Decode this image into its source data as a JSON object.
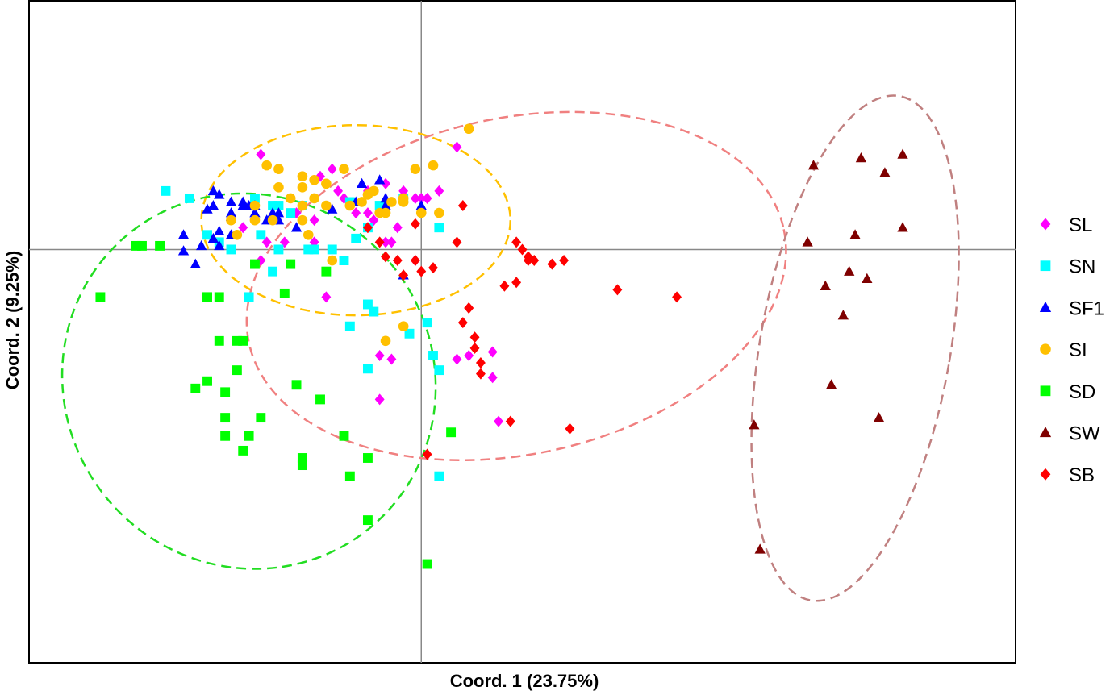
{
  "chart_data": {
    "type": "scatter",
    "title": "",
    "xlabel": "Coord. 1 (23.75%)",
    "ylabel": "Coord. 2 (9.25%)",
    "xlim": [
      -0.66,
      1.0
    ],
    "ylim": [
      -0.565,
      0.34
    ],
    "grid": false,
    "reference_lines": {
      "x": 0,
      "y": 0
    },
    "legend_position": "right",
    "series": [
      {
        "name": "SL",
        "marker": "diamond",
        "color": "#FF00FF",
        "x": [
          -0.27,
          -0.21,
          -0.18,
          -0.3,
          -0.26,
          -0.17,
          -0.15,
          -0.13,
          -0.09,
          -0.06,
          -0.03,
          0.0,
          0.03,
          0.06,
          -0.23,
          -0.14,
          -0.09,
          -0.06,
          -0.04,
          -0.01,
          0.01,
          -0.27,
          -0.18,
          -0.11,
          -0.08,
          -0.05,
          -0.01,
          0.08,
          -0.07,
          0.06,
          0.12,
          0.12,
          0.13,
          -0.16,
          -0.07,
          -0.05
        ],
        "y": [
          0.13,
          0.05,
          0.04,
          0.03,
          0.01,
          0.1,
          0.11,
          0.07,
          0.08,
          0.09,
          0.08,
          0.07,
          0.08,
          0.14,
          0.01,
          0.08,
          0.05,
          0.01,
          0.03,
          0.07,
          0.07,
          -0.015,
          0.01,
          0.05,
          0.04,
          0.01,
          -0.015,
          -0.145,
          -0.145,
          -0.15,
          -0.175,
          -0.14,
          -0.235,
          -0.065,
          -0.205,
          -0.15
        ]
      },
      {
        "name": "SN",
        "marker": "square",
        "color": "#00FFFF",
        "x": [
          -0.43,
          -0.39,
          -0.36,
          -0.34,
          -0.32,
          -0.27,
          -0.28,
          -0.24,
          -0.22,
          -0.18,
          -0.15,
          -0.12,
          -0.09,
          -0.07,
          -0.03,
          0.03,
          -0.24,
          -0.19,
          -0.13,
          -0.11,
          -0.25,
          -0.2,
          -0.09,
          -0.08,
          -0.12,
          -0.25,
          -0.09,
          -0.02,
          0.02,
          0.03,
          -0.29,
          0.01,
          0.03
        ],
        "y": [
          0.08,
          0.07,
          0.02,
          0.01,
          0.0,
          0.02,
          0.07,
          0.06,
          0.05,
          0.0,
          0.0,
          0.065,
          0.03,
          0.06,
          0.07,
          0.03,
          0.0,
          0.0,
          -0.015,
          0.015,
          0.06,
          0.06,
          -0.075,
          -0.085,
          -0.105,
          -0.03,
          -0.163,
          -0.115,
          -0.145,
          -0.165,
          -0.065,
          -0.1,
          -0.31
        ]
      },
      {
        "name": "SF1",
        "marker": "triangle",
        "color": "#0000FF",
        "x": [
          -0.36,
          -0.32,
          -0.3,
          -0.35,
          -0.28,
          -0.26,
          -0.24,
          -0.35,
          -0.32,
          -0.24,
          -0.21,
          -0.32,
          -0.32,
          -0.15,
          -0.11,
          -0.06,
          0.0,
          -0.07,
          -0.34,
          -0.37,
          -0.34,
          -0.25
        ],
        "y": [
          0.055,
          0.065,
          0.065,
          0.06,
          0.05,
          0.04,
          0.04,
          0.015,
          0.02,
          0.05,
          0.03,
          0.05,
          0.045,
          0.055,
          0.065,
          0.06,
          0.06,
          0.095,
          0.025,
          0.005,
          0.005,
          0.04
        ],
        "note_points": [
          [
            -0.34,
            0.075
          ],
          [
            -0.35,
            0.08
          ],
          [
            -0.3,
            0.06
          ],
          [
            -0.28,
            0.06
          ],
          [
            -0.25,
            0.05
          ],
          [
            -0.4,
            0.02
          ],
          [
            -0.38,
            -0.02
          ],
          [
            -0.1,
            0.09
          ],
          [
            -0.06,
            0.07
          ],
          [
            -0.03,
            -0.035
          ],
          [
            -0.4,
            -0.002
          ],
          [
            -0.29,
            0.06
          ]
        ]
      },
      {
        "name": "SI",
        "marker": "circle",
        "color": "#FFC000",
        "x": [
          -0.26,
          -0.24,
          -0.2,
          -0.13,
          -0.08,
          -0.01,
          0.02,
          0.08,
          -0.24,
          -0.2,
          -0.18,
          -0.16,
          -0.28,
          -0.22,
          -0.2,
          -0.18,
          -0.16,
          -0.12,
          -0.07,
          -0.03,
          -0.09,
          -0.28,
          -0.25,
          -0.2,
          -0.1,
          -0.05,
          -0.03,
          0.0,
          0.03,
          -0.32,
          -0.31,
          -0.19,
          -0.06,
          -0.03,
          -0.15,
          -0.06
        ],
        "y": [
          0.115,
          0.11,
          0.1,
          0.11,
          0.08,
          0.11,
          0.115,
          0.165,
          0.085,
          0.085,
          0.095,
          0.09,
          0.06,
          0.07,
          0.06,
          0.07,
          0.06,
          0.06,
          0.05,
          0.07,
          0.075,
          0.04,
          0.04,
          0.04,
          0.065,
          0.065,
          0.065,
          0.05,
          0.05,
          0.04,
          0.02,
          0.02,
          -0.125,
          -0.105,
          -0.015,
          0.05
        ]
      },
      {
        "name": "SD",
        "marker": "square",
        "color": "#00FF00",
        "x": [
          -0.48,
          -0.44,
          -0.36,
          -0.34,
          -0.3,
          -0.31,
          -0.34,
          -0.36,
          -0.31,
          -0.38,
          -0.17,
          -0.23,
          -0.16,
          -0.22,
          -0.13,
          -0.2,
          -0.3,
          -0.12,
          -0.2,
          -0.33,
          -0.36,
          -0.27,
          -0.29
        ],
        "y": [
          0.005,
          0.005,
          -0.065,
          -0.065,
          -0.125,
          -0.125,
          -0.125,
          -0.065,
          -0.165,
          -0.19,
          -0.205,
          -0.06,
          -0.03,
          -0.02,
          -0.255,
          -0.285,
          -0.275,
          -0.31,
          -0.295,
          -0.195,
          -0.18,
          -0.23,
          -0.255
        ],
        "extra": [
          [
            -0.54,
            -0.065
          ],
          [
            -0.47,
            0.005
          ],
          [
            -0.33,
            -0.23
          ],
          [
            -0.33,
            -0.255
          ],
          [
            -0.28,
            -0.02
          ],
          [
            -0.21,
            -0.185
          ],
          [
            -0.09,
            -0.37
          ],
          [
            0.01,
            -0.43
          ],
          [
            0.05,
            -0.25
          ],
          [
            -0.09,
            -0.285
          ]
        ]
      },
      {
        "name": "SW",
        "marker": "triangle",
        "color": "#7F0000",
        "x": [
          0.66,
          0.74,
          0.78,
          0.81,
          0.65,
          0.73,
          0.81,
          0.68,
          0.72,
          0.75,
          0.71,
          0.69,
          0.77,
          0.56,
          0.57
        ],
        "y": [
          0.115,
          0.125,
          0.105,
          0.13,
          0.01,
          0.02,
          0.03,
          -0.05,
          -0.03,
          -0.04,
          -0.09,
          -0.185,
          -0.23,
          -0.24,
          -0.41
        ]
      },
      {
        "name": "SB",
        "marker": "diamond",
        "color": "#FF0000",
        "x": [
          0.07,
          0.06,
          0.16,
          0.17,
          0.18,
          0.22,
          0.16,
          0.08,
          0.07,
          0.09,
          0.09,
          0.1,
          0.1,
          -0.09,
          -0.07,
          -0.06,
          -0.04,
          -0.03,
          -0.01,
          -0.01,
          0.02,
          0.0,
          0.19,
          0.14,
          0.08,
          0.33,
          0.43,
          0.25,
          0.15,
          0.01,
          0.24,
          0.18
        ],
        "y": [
          0.06,
          0.01,
          0.01,
          0.0,
          -0.01,
          -0.02,
          -0.045,
          -0.08,
          -0.1,
          -0.135,
          -0.12,
          -0.155,
          -0.17,
          0.03,
          0.01,
          -0.01,
          -0.015,
          -0.035,
          -0.015,
          0.035,
          -0.025,
          -0.03,
          -0.015,
          -0.05,
          -0.08,
          -0.055,
          -0.065,
          -0.245,
          -0.235,
          -0.28,
          -0.015,
          -0.015
        ]
      }
    ],
    "ellipses": [
      {
        "series": "SI",
        "color": "#FFC000",
        "cx": -0.11,
        "cy": 0.04,
        "rx": 0.26,
        "ry": 0.13,
        "angle": 0
      },
      {
        "series": "SD",
        "color": "#22DD22",
        "cx": -0.29,
        "cy": -0.18,
        "rx": 0.31,
        "ry": 0.26,
        "angle": -40
      },
      {
        "series": "SB",
        "color": "#F08080",
        "cx": 0.16,
        "cy": -0.05,
        "rx": 0.46,
        "ry": 0.23,
        "angle": -12
      },
      {
        "series": "SW",
        "color": "#C08080",
        "cx": 0.73,
        "cy": -0.135,
        "rx": 0.16,
        "ry": 0.35,
        "angle": 10
      }
    ]
  }
}
